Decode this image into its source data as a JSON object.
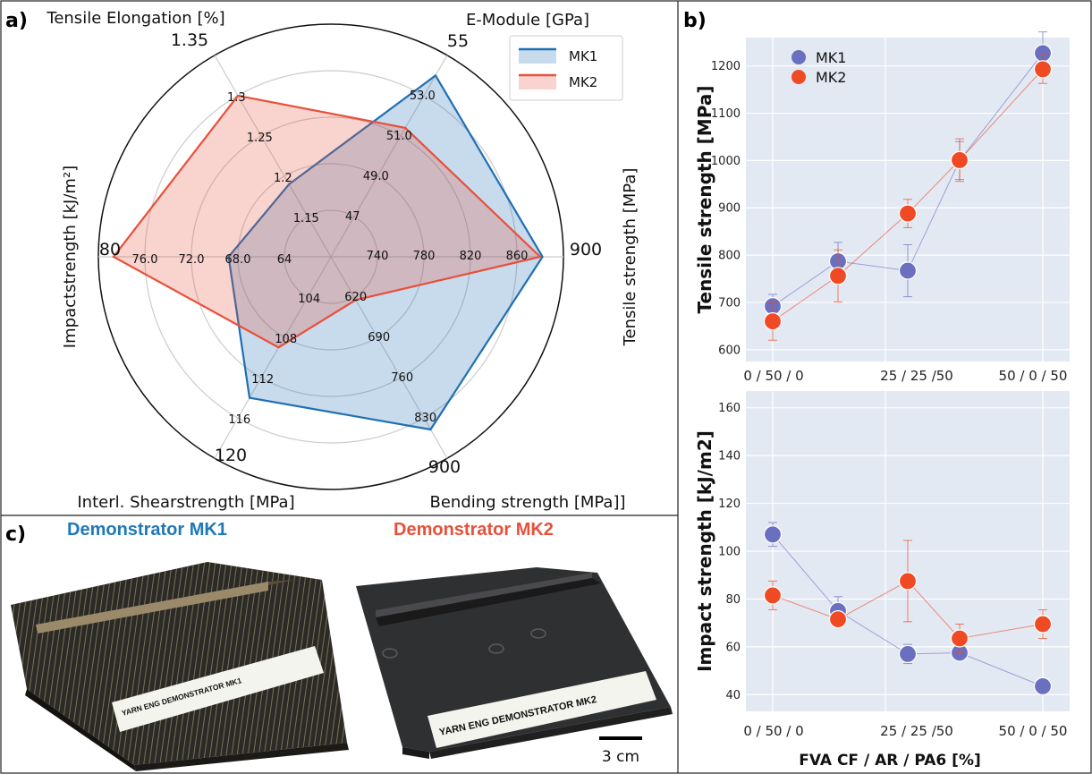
{
  "panels": {
    "a": "a)",
    "b": "b)",
    "c": "c)"
  },
  "colors": {
    "mk1": "#1f6fb4",
    "mk2": "#e8503a",
    "mk1_dot": "#6a6fbf",
    "mk2_dot": "#ef4a23",
    "plot_bg": "#e3e9f3"
  },
  "chart_data": [
    {
      "type": "radar",
      "axes": [
        {
          "label": "E-Module [GPa]",
          "range_label": "55",
          "ticks": [
            "47",
            "49.0",
            "51.0",
            "53.0"
          ],
          "min": 45,
          "max": 55
        },
        {
          "label": "Tensile strength [MPa]",
          "range_label": "900",
          "ticks": [
            "740",
            "780",
            "820",
            "860"
          ],
          "min": 700,
          "max": 900
        },
        {
          "label": "Bending strength [MPa]]",
          "range_label": "900",
          "ticks": [
            "620",
            "690",
            "760",
            "830"
          ],
          "min": 550,
          "max": 900
        },
        {
          "label": "Interl. Shearstrength [MPa]",
          "range_label": "120",
          "ticks": [
            "104",
            "108",
            "112",
            "116"
          ],
          "min": 100,
          "max": 120
        },
        {
          "label": "Impactstrength [kJ/m²]",
          "range_label": "80",
          "ticks": [
            "64",
            "68.0",
            "72.0",
            "76.0"
          ],
          "min": 60,
          "max": 80
        },
        {
          "label": "Tensile Elongation [%]",
          "range_label": "1.35",
          "ticks": [
            "1.15",
            "1.2",
            "1.25",
            "1.3"
          ],
          "min": 1.1,
          "max": 1.35
        }
      ],
      "series": [
        {
          "name": "MK1",
          "values": [
            54.0,
            882,
            850,
            114.0,
            68.8,
            1.19
          ]
        },
        {
          "name": "MK2",
          "values": [
            51.4,
            880,
            625,
            109.0,
            78.7,
            1.3
          ]
        }
      ],
      "legend": "top-right"
    },
    {
      "type": "scatter",
      "ylabel": "Tensile strength [MPa]",
      "ylim": [
        575,
        1260
      ],
      "yticks": [
        600,
        700,
        800,
        900,
        1000,
        1100,
        1200
      ],
      "xticks": [
        "0 / 50 / 0",
        "25 / 25 /50",
        "50 / 0 / 50"
      ],
      "x": [
        0,
        1,
        2,
        3,
        4
      ],
      "series": [
        {
          "name": "MK1",
          "values": [
            692,
            787,
            767,
            1000,
            1227
          ],
          "errors": [
            25,
            40,
            55,
            40,
            45
          ]
        },
        {
          "name": "MK2",
          "values": [
            660,
            756,
            888,
            1001,
            1193
          ],
          "errors": [
            40,
            55,
            30,
            45,
            30
          ]
        }
      ],
      "legend": "top-left"
    },
    {
      "type": "scatter",
      "xlabel": "FVA CF / AR / PA6 [%]",
      "ylabel": "Impact strength [kJ/m2]",
      "ylim": [
        33,
        167
      ],
      "yticks": [
        40,
        60,
        80,
        100,
        120,
        140,
        160
      ],
      "xticks": [
        "0 / 50 / 0",
        "25 / 25 /50",
        "50 / 0 / 50"
      ],
      "x": [
        0,
        1,
        2,
        3,
        4
      ],
      "series": [
        {
          "name": "MK1",
          "values": [
            107,
            75,
            57,
            57.5,
            43.5
          ],
          "errors": [
            5,
            6,
            4,
            3,
            2
          ]
        },
        {
          "name": "MK2",
          "values": [
            81.5,
            71.5,
            87.5,
            63.5,
            69.5
          ],
          "errors": [
            6,
            3,
            17,
            6,
            6
          ]
        }
      ]
    }
  ],
  "photos": {
    "mk1_title": "Demonstrator MK1",
    "mk2_title": "Demonstrator MK2",
    "mk1_label": "YARN ENG DEMONSTRATOR  MK1",
    "mk2_label": "YARN ENG DEMONSTRATOR  MK2",
    "scale": "3 cm"
  }
}
